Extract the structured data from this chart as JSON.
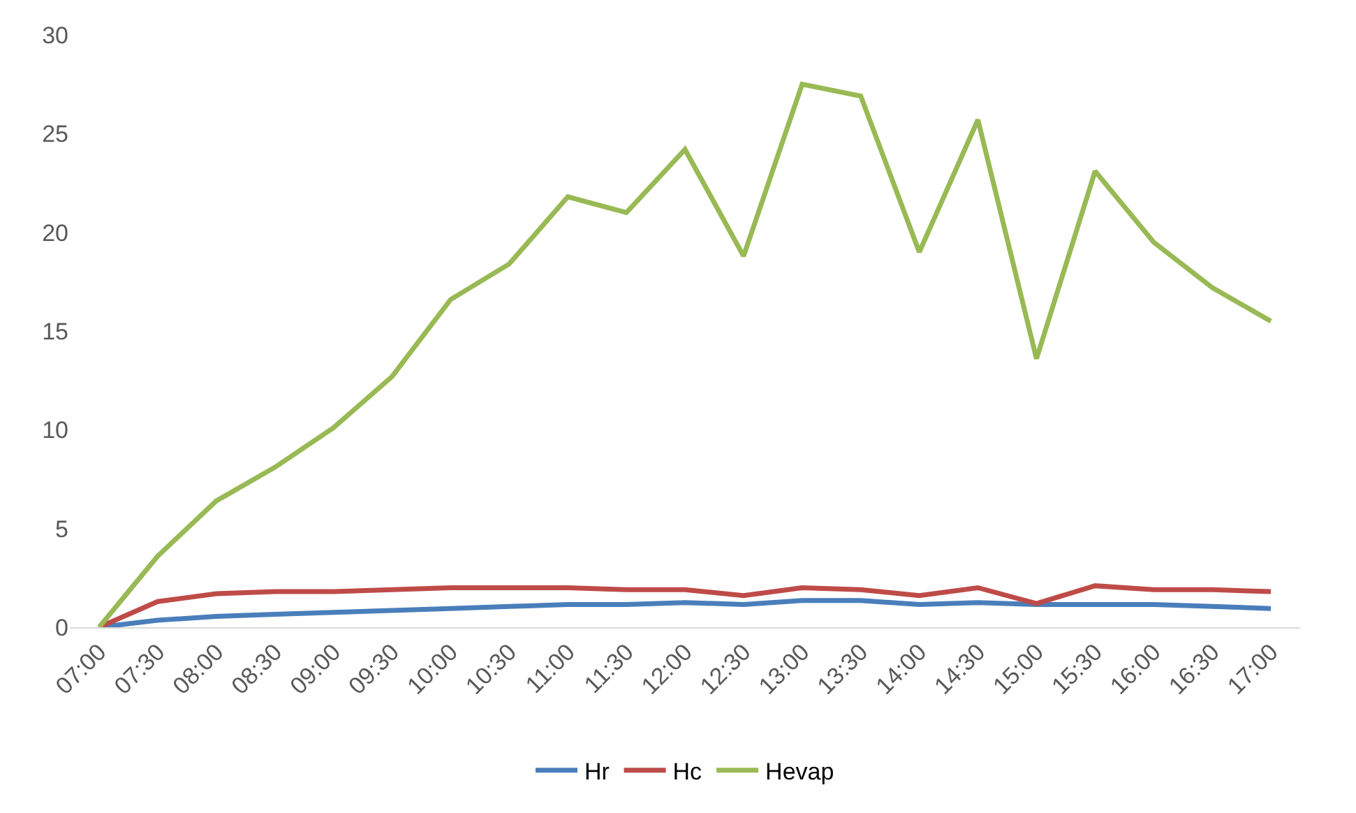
{
  "chart_data": {
    "type": "line",
    "categories": [
      "07:00",
      "07:30",
      "08:00",
      "08:30",
      "09:00",
      "09:30",
      "10:00",
      "10:30",
      "11:00",
      "11:30",
      "12:00",
      "12:30",
      "13:00",
      "13:30",
      "14:00",
      "14:30",
      "15:00",
      "15:30",
      "16:00",
      "16:30",
      "17:00"
    ],
    "series": [
      {
        "name": "Hr",
        "color": "#4a7ebb",
        "values": [
          0,
          0.35,
          0.55,
          0.65,
          0.75,
          0.85,
          0.95,
          1.05,
          1.15,
          1.15,
          1.25,
          1.15,
          1.35,
          1.35,
          1.15,
          1.25,
          1.15,
          1.15,
          1.15,
          1.05,
          0.95
        ]
      },
      {
        "name": "Hc",
        "color": "#be4b48",
        "values": [
          0,
          1.3,
          1.7,
          1.8,
          1.8,
          1.9,
          2.0,
          2.0,
          2.0,
          1.9,
          1.9,
          1.6,
          2.0,
          1.9,
          1.6,
          2.0,
          1.2,
          2.1,
          1.9,
          1.9,
          1.8
        ]
      },
      {
        "name": "Hevap",
        "color": "#98b954",
        "values": [
          0,
          3.6,
          6.4,
          8.1,
          10.1,
          12.7,
          16.6,
          18.4,
          21.8,
          21.0,
          24.2,
          18.8,
          27.5,
          26.9,
          19.0,
          25.7,
          13.6,
          23.1,
          19.5,
          17.2,
          15.5
        ]
      }
    ],
    "ylim": [
      0,
      30
    ],
    "yticks": [
      0,
      5,
      10,
      15,
      20,
      25,
      30
    ],
    "grid": false,
    "legend": "bottom",
    "marker": "none",
    "line_style": "solid"
  }
}
